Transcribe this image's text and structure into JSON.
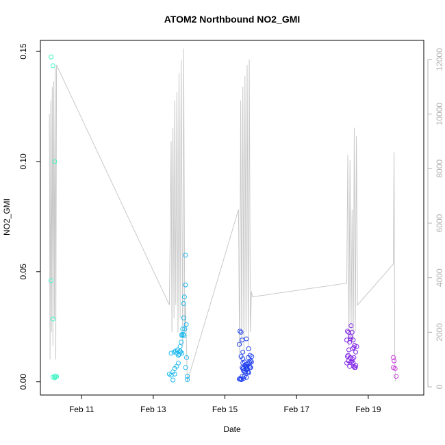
{
  "chart_data": {
    "type": "scatter",
    "title": "ATOM2 Northbound NO2_GMI",
    "xlabel": "Date",
    "ylabel": "NO2_GMI",
    "x_unit": "days (February)",
    "xlim": [
      9.85,
      20.55
    ],
    "ylim": [
      -0.006,
      0.155
    ],
    "x_ticks": [
      {
        "value": 11,
        "label": "Feb 11"
      },
      {
        "value": 13,
        "label": "Feb 13"
      },
      {
        "value": 15,
        "label": "Feb 15"
      },
      {
        "value": 17,
        "label": "Feb 17"
      },
      {
        "value": 19,
        "label": "Feb 19"
      }
    ],
    "y_ticks": [
      {
        "value": 0.0,
        "label": "0.00"
      },
      {
        "value": 0.05,
        "label": "0.05"
      },
      {
        "value": 0.1,
        "label": "0.10"
      },
      {
        "value": 0.15,
        "label": "0.15"
      }
    ],
    "y2lim": [
      -300,
      12700
    ],
    "y2_ticks": [
      {
        "value": 0,
        "label": "0"
      },
      {
        "value": 2000,
        "label": "2000"
      },
      {
        "value": 4000,
        "label": "4000"
      },
      {
        "value": 6000,
        "label": "6000"
      },
      {
        "value": 8000,
        "label": "8000"
      },
      {
        "value": 10000,
        "label": "10000"
      },
      {
        "value": 12000,
        "label": "12000"
      }
    ],
    "legend": "none",
    "grid": false,
    "series": [
      {
        "color": "#3ff5c3",
        "x": [
          10.15,
          10.2,
          10.25,
          10.15,
          10.2,
          10.25,
          10.2,
          10.25,
          10.28,
          10.3
        ],
        "y": [
          0.1475,
          0.1435,
          0.1,
          0.046,
          0.0285,
          0.0026,
          0.0021,
          0.0018,
          0.0022,
          0.0024
        ]
      },
      {
        "color": "#1ab8ee",
        "x": [
          13.45,
          13.5,
          13.55,
          13.6,
          13.65,
          13.7,
          13.7,
          13.75,
          13.75,
          13.78,
          13.8,
          13.8,
          13.82,
          13.85,
          13.85,
          13.87,
          13.9,
          13.9,
          13.92,
          13.95,
          13.55,
          13.6,
          13.65,
          13.5,
          13.58,
          13.62,
          13.68,
          13.72,
          13.76,
          13.8,
          13.84,
          13.86,
          13.88,
          13.9,
          13.93,
          13.95
        ],
        "y": [
          0.0035,
          0.003,
          0.0045,
          0.006,
          0.007,
          0.0085,
          0.012,
          0.014,
          0.016,
          0.018,
          0.021,
          0.0215,
          0.024,
          0.029,
          0.0355,
          0.0385,
          0.044,
          0.0575,
          0.026,
          0.0025,
          0.0008,
          0.0035,
          0.013,
          0.013,
          0.0135,
          0.014,
          0.0145,
          0.0125,
          0.0135,
          0.013,
          0.0215,
          0.021,
          0.024,
          0.0065,
          0.011,
          0.001
        ]
      },
      {
        "color": "#2040ee",
        "x": [
          15.4,
          15.42,
          15.45,
          15.48,
          15.5,
          15.52,
          15.55,
          15.58,
          15.6,
          15.62,
          15.65,
          15.68,
          15.7,
          15.72,
          15.75,
          15.45,
          15.5,
          15.55,
          15.6,
          15.65,
          15.7,
          15.48,
          15.52,
          15.58,
          15.62,
          15.68,
          15.42,
          15.46,
          15.54,
          15.6,
          15.66,
          15.72,
          15.4,
          15.44,
          15.5,
          15.56,
          15.64,
          15.7,
          15.74,
          15.48,
          15.52,
          15.6,
          15.66,
          15.5,
          15.58
        ],
        "y": [
          0.017,
          0.023,
          0.0225,
          0.019,
          0.0085,
          0.006,
          0.0045,
          0.007,
          0.0055,
          0.006,
          0.0045,
          0.007,
          0.0085,
          0.0095,
          0.0115,
          0.0115,
          0.0105,
          0.009,
          0.008,
          0.011,
          0.012,
          0.0065,
          0.005,
          0.0065,
          0.007,
          0.009,
          0.0015,
          0.001,
          0.0025,
          0.002,
          0.004,
          0.0065,
          0.0012,
          0.0012,
          0.006,
          0.0075,
          0.0045,
          0.0065,
          0.009,
          0.0025,
          0.0015,
          0.0195,
          0.015,
          0.0135,
          0.0045
        ]
      },
      {
        "color": "#7e22e6",
        "x": [
          18.4,
          18.42,
          18.45,
          18.48,
          18.5,
          18.52,
          18.55,
          18.58,
          18.6,
          18.62,
          18.65,
          18.68,
          18.4,
          18.45,
          18.5,
          18.55,
          18.6,
          18.65,
          18.42,
          18.48,
          18.52,
          18.58,
          18.62,
          18.5,
          18.55,
          18.6,
          18.44,
          18.56,
          18.64,
          18.46
        ],
        "y": [
          0.019,
          0.023,
          0.0225,
          0.018,
          0.0205,
          0.0255,
          0.0225,
          0.019,
          0.0155,
          0.0165,
          0.0135,
          0.016,
          0.0085,
          0.0095,
          0.011,
          0.0105,
          0.011,
          0.0075,
          0.0115,
          0.007,
          0.009,
          0.0085,
          0.0065,
          0.0195,
          0.0095,
          0.007,
          0.012,
          0.015,
          0.0065,
          0.0145
        ]
      },
      {
        "color": "#cc33dd",
        "x": [
          19.7,
          19.72,
          19.75,
          19.7,
          19.78
        ],
        "y": [
          0.011,
          0.0095,
          0.006,
          0.0065,
          0.0025
        ]
      }
    ],
    "altitude_line": {
      "color": "#c8c8c8",
      "axis": "right",
      "x": [
        10.1,
        10.12,
        10.14,
        10.16,
        10.18,
        10.2,
        10.22,
        10.24,
        10.26,
        10.28,
        10.3,
        13.45,
        13.5,
        13.52,
        13.55,
        13.58,
        13.6,
        13.63,
        13.66,
        13.69,
        13.72,
        13.75,
        13.78,
        13.82,
        13.85,
        13.88,
        13.9,
        13.95,
        15.38,
        15.41,
        15.44,
        15.47,
        15.5,
        15.53,
        15.56,
        15.59,
        15.62,
        15.65,
        15.68,
        15.71,
        15.74,
        15.77,
        18.4,
        18.43,
        18.46,
        18.49,
        18.52,
        18.55,
        18.58,
        18.61,
        18.64,
        18.67,
        18.7,
        19.7,
        19.72,
        19.74,
        19.76
      ],
      "y": [
        10000,
        1000,
        10500,
        2000,
        11000,
        1500,
        11200,
        2500,
        11700,
        1000,
        11800,
        3000,
        9000,
        2000,
        9500,
        2500,
        10500,
        3000,
        10800,
        2000,
        11500,
        2500,
        12000,
        1500,
        12400,
        2000,
        3000,
        200,
        6500,
        1000,
        10500,
        1500,
        11000,
        1200,
        11400,
        2000,
        11800,
        1500,
        12000,
        2000,
        3500,
        3300,
        3800,
        8500,
        1500,
        8300,
        2000,
        6500,
        1500,
        9500,
        2000,
        9200,
        3000,
        4500,
        8600,
        1000,
        200
      ]
    }
  }
}
